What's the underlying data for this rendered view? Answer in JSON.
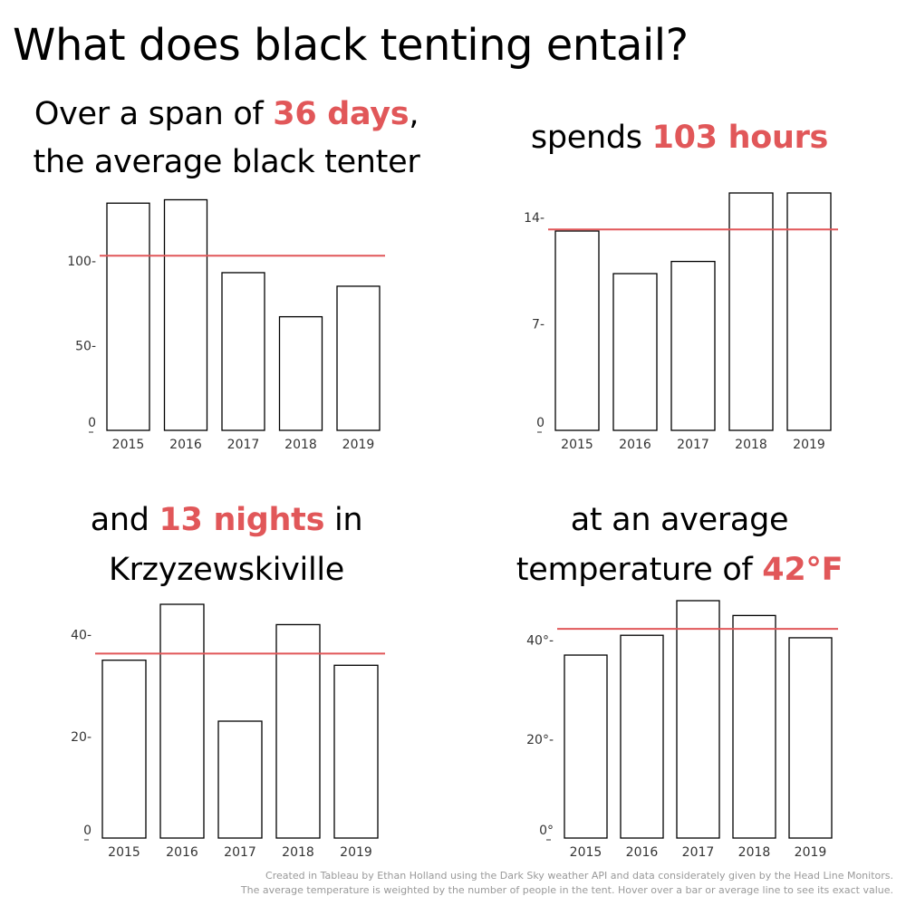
{
  "title": "What does black tenting entail?",
  "colors": {
    "accent": "#e15759",
    "bar_fill": "#ffffff",
    "bar_stroke": "#000000"
  },
  "footer": {
    "line1": "Created in Tableau by Ethan Holland using the Dark Sky weather API and data considerately given by the Head Line Monitors.",
    "line2": "The average temperature is weighted by the number of people in the tent. Hover over a bar or average line to see its exact value."
  },
  "panels": {
    "days": {
      "line1_pre": "Over a span of ",
      "line1_hl": "36 days",
      "line1_post": ",",
      "line2": "the average black tenter"
    },
    "hours": {
      "pre": "spends ",
      "hl": "103 hours"
    },
    "nights": {
      "pre": "and ",
      "hl": "13 nights",
      "post": " in",
      "line2": "Krzyzewskiville"
    },
    "temp": {
      "line1": "at an average",
      "pre": "temperature of ",
      "hl": "42°F"
    }
  },
  "chart_data": [
    {
      "type": "bar",
      "categories": [
        "2015",
        "2016",
        "2017",
        "2018",
        "2019"
      ],
      "values": [
        134,
        136,
        93,
        67,
        85
      ],
      "average": 103,
      "ylim": [
        0,
        140
      ],
      "yticks": [
        0,
        50,
        100
      ],
      "ytick_labels": [
        "0",
        "50-",
        "100-"
      ]
    },
    {
      "type": "bar",
      "categories": [
        "2015",
        "2016",
        "2017",
        "2018",
        "2019"
      ],
      "values": [
        13.1,
        10.3,
        11.1,
        15.6,
        15.6
      ],
      "average": 13.2,
      "ylim": [
        0,
        15.6
      ],
      "yticks": [
        0,
        7,
        14
      ],
      "ytick_labels": [
        "0",
        "7-",
        "14-"
      ]
    },
    {
      "type": "bar",
      "categories": [
        "2015",
        "2016",
        "2017",
        "2018",
        "2019"
      ],
      "values": [
        35,
        46,
        23,
        42,
        34
      ],
      "average": 36.3,
      "ylim": [
        0,
        46
      ],
      "yticks": [
        0,
        20,
        40
      ],
      "ytick_labels": [
        "0",
        "20-",
        "40-"
      ]
    },
    {
      "type": "bar",
      "categories": [
        "2015",
        "2016",
        "2017",
        "2018",
        "2019"
      ],
      "values": [
        37,
        41,
        48,
        45,
        40.5
      ],
      "average": 42.3,
      "ylim": [
        0,
        48
      ],
      "yticks": [
        0,
        20,
        40
      ],
      "ytick_labels": [
        "0°",
        "20°-",
        "40°-"
      ]
    }
  ]
}
